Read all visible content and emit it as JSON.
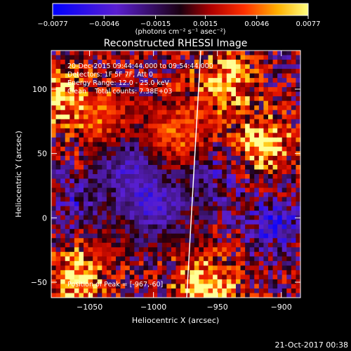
{
  "chart_data": {
    "type": "heatmap",
    "title": "Reconstructed RHESSI Image",
    "xlabel": "Heliocentric X (arcsec)",
    "ylabel": "Heliocentric Y (arcsec)",
    "xlim": [
      -1080,
      -885
    ],
    "ylim": [
      -62,
      130
    ],
    "x_ticks": [
      -1050,
      -1000,
      -950,
      -900
    ],
    "y_ticks": [
      100,
      50,
      0,
      -50
    ],
    "x_tick_labels": [
      "−1050",
      "−1000",
      "−950",
      "−900"
    ],
    "y_tick_labels": [
      "100",
      "50",
      "0",
      "−50"
    ],
    "colorbar": {
      "ticks": [
        -0.0077,
        -0.0046,
        -0.0015,
        0.0015,
        0.0046,
        0.0077
      ],
      "tick_labels": [
        "−0.0077",
        "−0.0046",
        "−0.0015",
        "0.0015",
        "0.0046",
        "0.0077"
      ],
      "range": [
        -0.0077,
        0.0077
      ]
    },
    "limb_line": {
      "x": [
        -963,
        -974
      ],
      "y": [
        130,
        -62
      ]
    },
    "annotations": {
      "time": "20-Dec-2015 09:44:44.000 to 09:54:44.000",
      "detectors": "Detectors: 1F 5F 7F, Att 0",
      "energy": "Energy Range: 12.0 - 25.0 keV",
      "clean": "Clean    Total counts: 7.38E+03",
      "peak": "Position of Peak = [-967,-60]"
    },
    "sources": [
      {
        "x": -1060,
        "y": -45,
        "v": 0.0062
      },
      {
        "x": -1072,
        "y": 93,
        "v": 0.0055
      },
      {
        "x": -945,
        "y": 105,
        "v": 0.006
      },
      {
        "x": -915,
        "y": 58,
        "v": 0.0065
      },
      {
        "x": -960,
        "y": -55,
        "v": 0.0077
      },
      {
        "x": -980,
        "y": 65,
        "v": 0.004
      },
      {
        "x": -1040,
        "y": 75,
        "v": 0.0035
      },
      {
        "x": -1020,
        "y": 40,
        "v": -0.004
      },
      {
        "x": -1000,
        "y": 10,
        "v": -0.0045
      },
      {
        "x": -950,
        "y": 30,
        "v": -0.0035
      },
      {
        "x": -905,
        "y": -5,
        "v": -0.005
      },
      {
        "x": -1060,
        "y": 10,
        "v": -0.003
      }
    ]
  },
  "footer": {
    "timestamp": "21-Oct-2017 00:38"
  },
  "colorbar_units": "(photons cm⁻² s⁻¹ asec⁻²)"
}
